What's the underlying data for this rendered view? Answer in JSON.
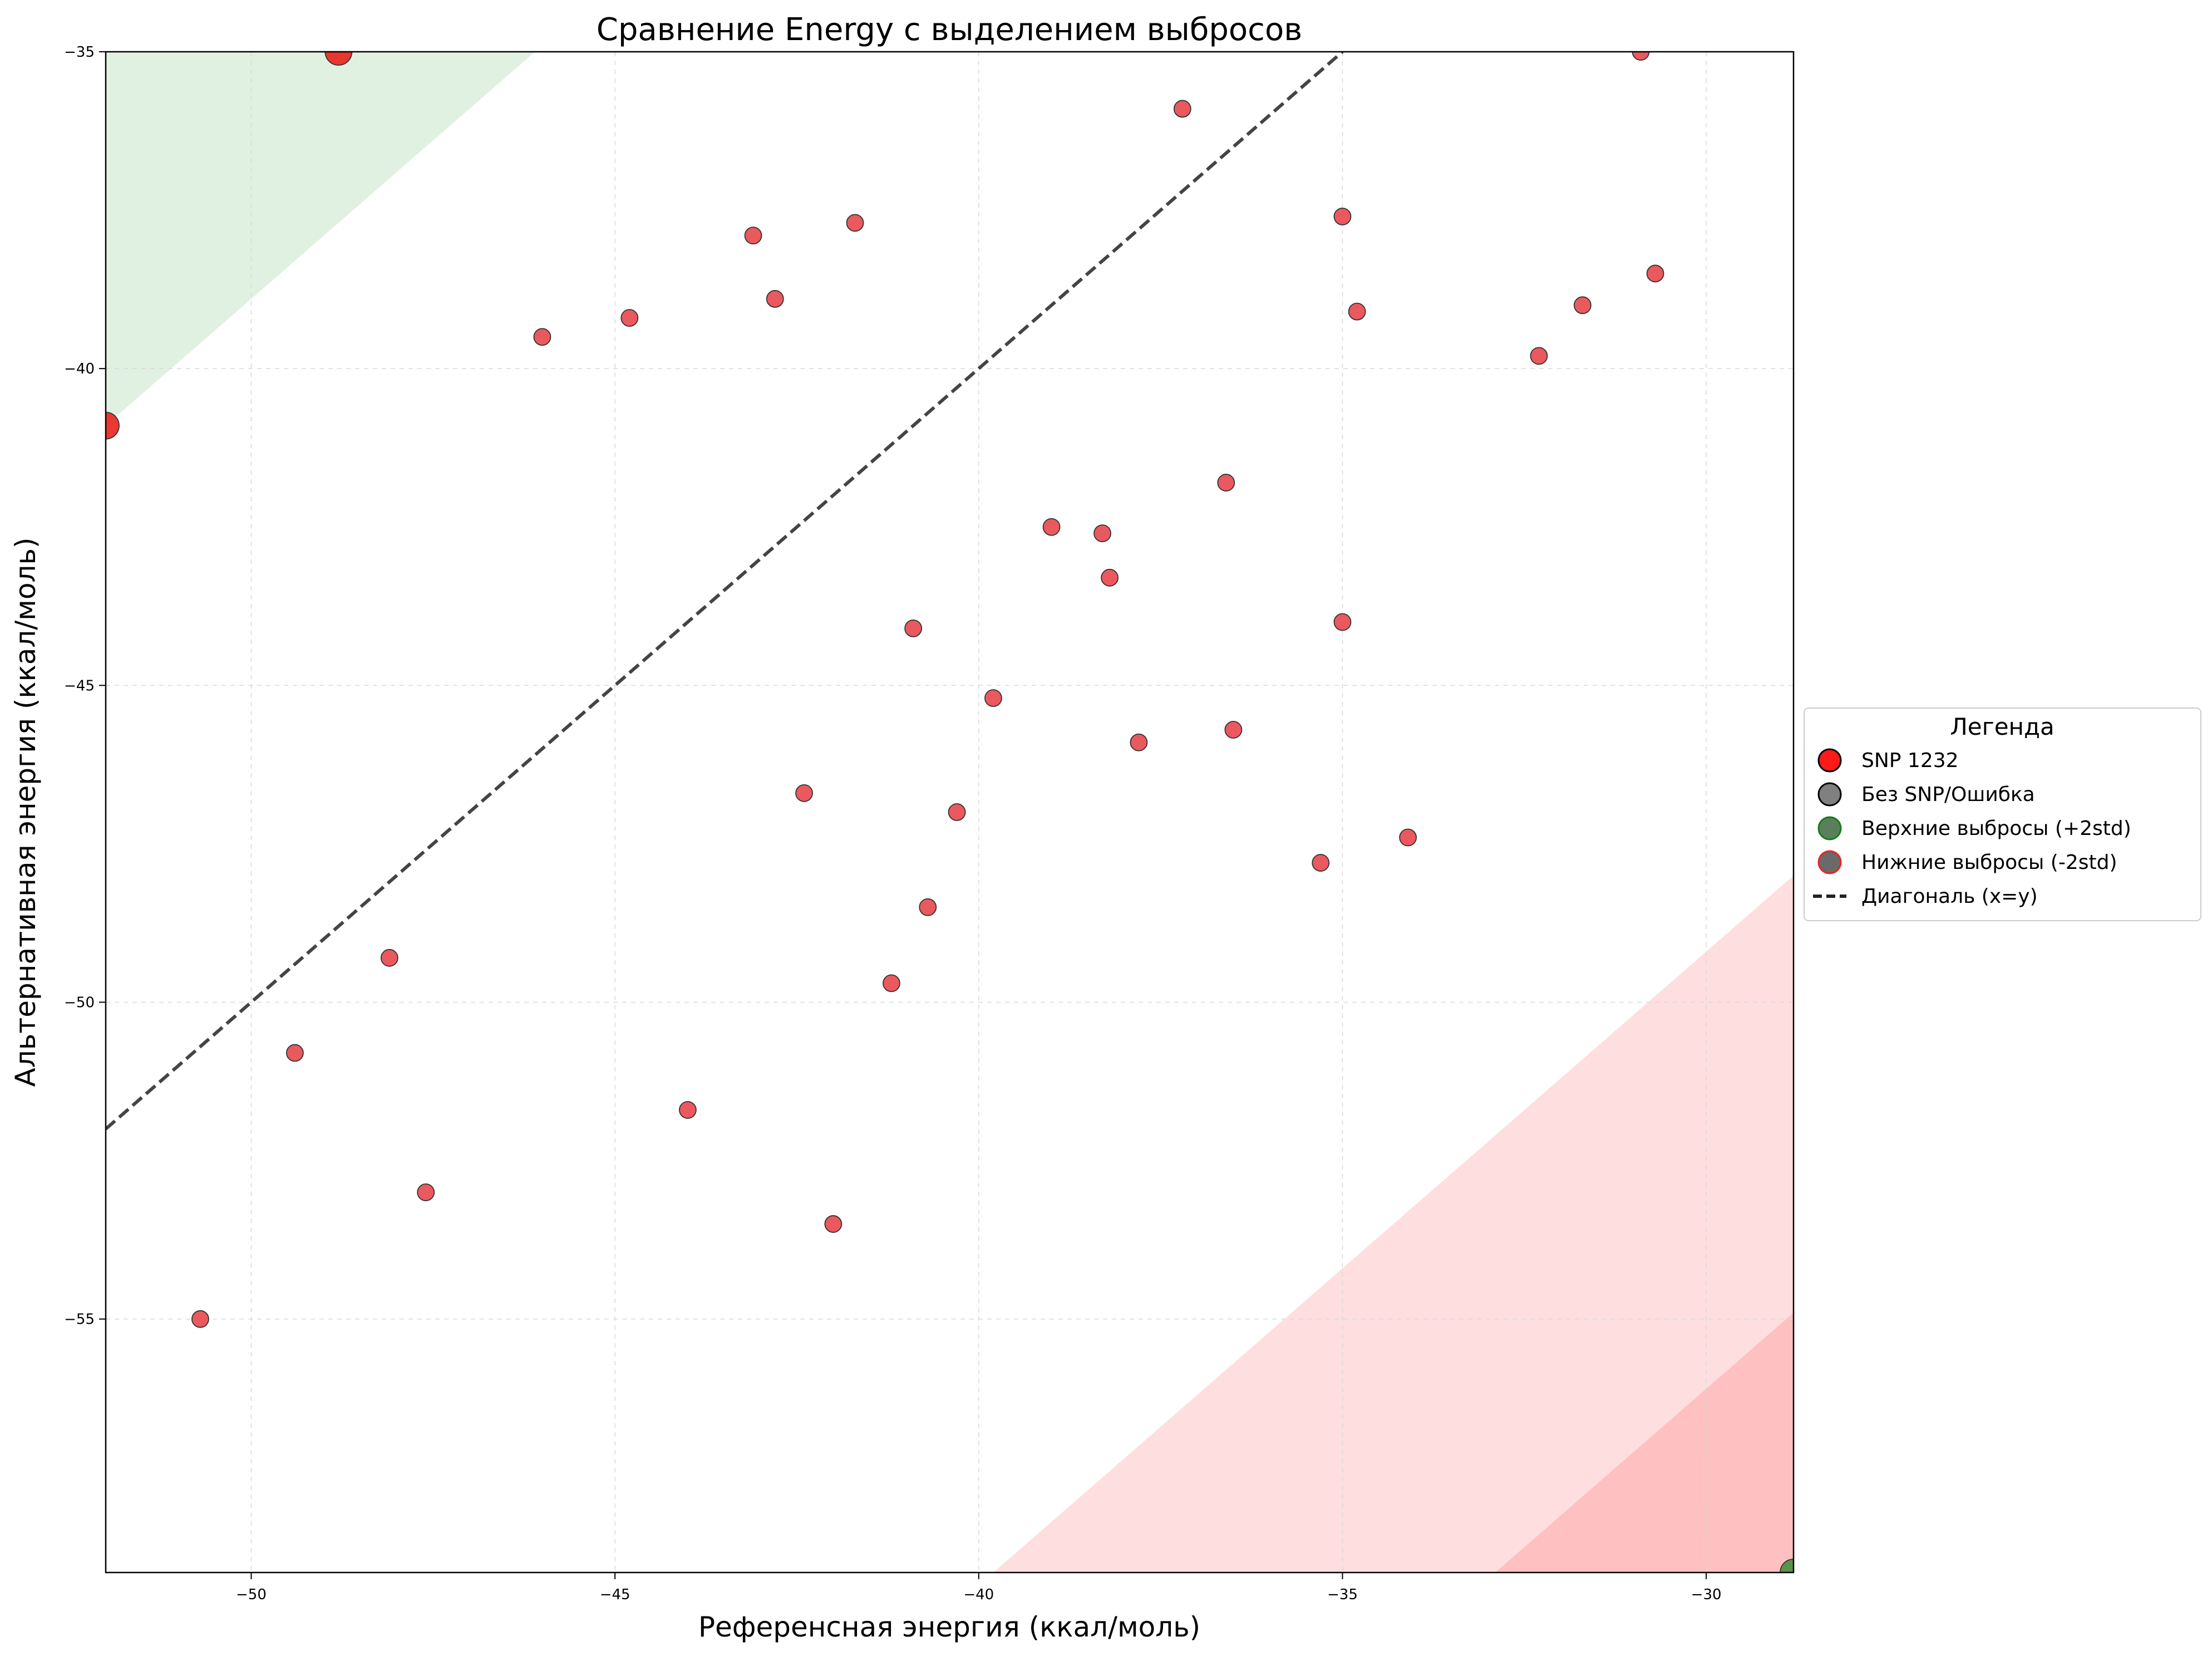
{
  "chart_data": {
    "type": "scatter",
    "title": "Сравнение Energy с выделением выбросов",
    "xlabel": "Референсная энергия (ккал/моль)",
    "ylabel": "Альтернативная энергия (ккал/моль)",
    "xlim": [
      -52.0,
      -28.8
    ],
    "ylim": [
      -59.0,
      -35.0
    ],
    "xticks": [
      -50,
      -45,
      -40,
      -35,
      -30
    ],
    "yticks": [
      -55,
      -50,
      -45,
      -40,
      -35
    ],
    "grid": true,
    "legend": {
      "title": "Легенда",
      "placement": "center-right-outside",
      "entries": [
        {
          "label": "SNP 1232",
          "kind": "marker",
          "fill": "#ff1a1a",
          "edge": "#000000"
        },
        {
          "label": "Без SNP/Ошибка",
          "kind": "marker",
          "fill": "#808080",
          "edge": "#000000"
        },
        {
          "label": "Верхние выбросы (+2std)",
          "kind": "marker",
          "fill": "#5a7f5a",
          "edge": "#1a7a1a"
        },
        {
          "label": "Нижние выбросы (-2std)",
          "kind": "marker",
          "fill": "#6a6a6a",
          "edge": "#ee2222"
        },
        {
          "label": "Диагональ (x=y)",
          "kind": "line",
          "color": "#222222"
        }
      ]
    },
    "diagonal": {
      "label": "Диагональ (x=y)",
      "color": "#444444"
    },
    "regions": {
      "upper": {
        "color": "#c9e5c9",
        "offset": 11.1
      },
      "lower_outer": {
        "color": "#ffd3d6",
        "offset": -19.2
      },
      "lower_inner": {
        "color": "#ffb3b3",
        "offset": -26.1
      }
    },
    "series": [
      {
        "name": "SNP 1232",
        "color": "#e8474c",
        "points": [
          [
            -50.7,
            -55.0
          ],
          [
            -49.4,
            -50.8
          ],
          [
            -48.1,
            -49.3
          ],
          [
            -47.6,
            -53.0
          ],
          [
            -46.0,
            -39.5
          ],
          [
            -44.8,
            -39.2
          ],
          [
            -44.0,
            -51.7
          ],
          [
            -43.1,
            -37.9
          ],
          [
            -42.8,
            -38.9
          ],
          [
            -42.4,
            -46.7
          ],
          [
            -42.0,
            -53.5
          ],
          [
            -41.7,
            -37.7
          ],
          [
            -41.2,
            -49.7
          ],
          [
            -40.9,
            -44.1
          ],
          [
            -40.7,
            -48.5
          ],
          [
            -40.3,
            -47.0
          ],
          [
            -39.8,
            -45.2
          ],
          [
            -39.0,
            -42.5
          ],
          [
            -38.3,
            -42.6
          ],
          [
            -38.2,
            -43.3
          ],
          [
            -37.8,
            -45.9
          ],
          [
            -37.2,
            -35.9
          ],
          [
            -36.6,
            -41.8
          ],
          [
            -36.5,
            -45.7
          ],
          [
            -35.3,
            -47.8
          ],
          [
            -35.0,
            -37.6
          ],
          [
            -35.0,
            -44.0
          ],
          [
            -34.8,
            -39.1
          ],
          [
            -34.1,
            -47.4
          ],
          [
            -32.3,
            -39.8
          ],
          [
            -31.7,
            -39.0
          ],
          [
            -30.9,
            -35.0
          ],
          [
            -30.7,
            -38.5
          ]
        ]
      },
      {
        "name": "Верхние выбросы (+2std)",
        "color": "#e8221c",
        "points": [
          [
            -48.8,
            -35.0
          ],
          [
            -52.0,
            -40.9
          ]
        ]
      },
      {
        "name": "Нижние выбросы (-2std)",
        "color": "#4a8f3a",
        "points": [
          [
            -28.8,
            -59.0
          ]
        ]
      }
    ]
  }
}
